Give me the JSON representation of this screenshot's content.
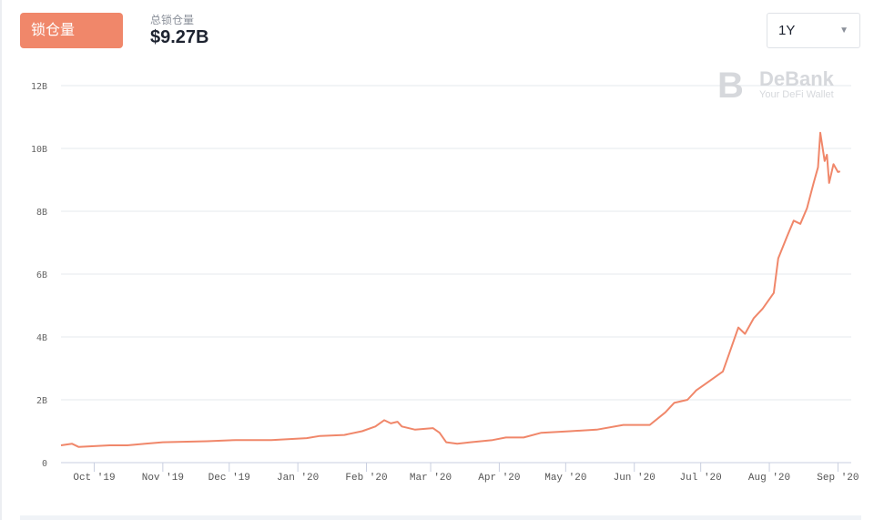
{
  "header": {
    "tab_label": "锁仓量",
    "total_label": "总锁仓量",
    "total_value": "$9.27B",
    "range_value": "1Y",
    "range_icon": "caret-down-icon"
  },
  "watermark": {
    "brand": "DeBank",
    "tagline": "Your DeFi Wallet"
  },
  "colors": {
    "line": "#f0876a",
    "grid": "#e6e8ec",
    "axis": "#c9cfe0"
  },
  "chart_data": {
    "type": "line",
    "title": "",
    "xlabel": "",
    "ylabel": "",
    "x_unit": "days since 2019-10-01",
    "xlim": [
      -15,
      342
    ],
    "ylim": [
      0,
      12
    ],
    "y_ticks": [
      {
        "v": 0,
        "label": "0"
      },
      {
        "v": 2,
        "label": "2B"
      },
      {
        "v": 4,
        "label": "4B"
      },
      {
        "v": 6,
        "label": "6B"
      },
      {
        "v": 8,
        "label": "8B"
      },
      {
        "v": 10,
        "label": "10B"
      },
      {
        "v": 12,
        "label": "12B"
      }
    ],
    "x_ticks": [
      {
        "v": 0,
        "label": "Oct '19"
      },
      {
        "v": 31,
        "label": "Nov '19"
      },
      {
        "v": 61,
        "label": "Dec '19"
      },
      {
        "v": 92,
        "label": "Jan '20"
      },
      {
        "v": 123,
        "label": "Feb '20"
      },
      {
        "v": 152,
        "label": "Mar '20"
      },
      {
        "v": 183,
        "label": "Apr '20"
      },
      {
        "v": 213,
        "label": "May '20"
      },
      {
        "v": 244,
        "label": "Jun '20"
      },
      {
        "v": 274,
        "label": "Jul '20"
      },
      {
        "v": 305,
        "label": "Aug '20"
      },
      {
        "v": 336,
        "label": "Sep '20"
      }
    ],
    "grid": true,
    "series": [
      {
        "name": "锁仓量",
        "unit": "B USD",
        "points": [
          [
            -15,
            0.55
          ],
          [
            -10,
            0.6
          ],
          [
            -7,
            0.5
          ],
          [
            -2,
            0.52
          ],
          [
            7,
            0.55
          ],
          [
            15,
            0.55
          ],
          [
            23,
            0.6
          ],
          [
            31,
            0.65
          ],
          [
            51,
            0.68
          ],
          [
            64,
            0.72
          ],
          [
            80,
            0.72
          ],
          [
            96,
            0.78
          ],
          [
            102,
            0.85
          ],
          [
            113,
            0.88
          ],
          [
            121,
            1.0
          ],
          [
            127,
            1.15
          ],
          [
            131,
            1.35
          ],
          [
            134,
            1.25
          ],
          [
            137,
            1.3
          ],
          [
            139,
            1.15
          ],
          [
            145,
            1.05
          ],
          [
            153,
            1.1
          ],
          [
            156,
            0.95
          ],
          [
            159,
            0.65
          ],
          [
            164,
            0.6
          ],
          [
            170,
            0.65
          ],
          [
            180,
            0.72
          ],
          [
            186,
            0.8
          ],
          [
            194,
            0.8
          ],
          [
            202,
            0.95
          ],
          [
            215,
            1.0
          ],
          [
            227,
            1.05
          ],
          [
            239,
            1.2
          ],
          [
            251,
            1.2
          ],
          [
            258,
            1.6
          ],
          [
            262,
            1.9
          ],
          [
            268,
            2.0
          ],
          [
            272,
            2.3
          ],
          [
            276,
            2.5
          ],
          [
            284,
            2.9
          ],
          [
            287,
            3.5
          ],
          [
            291,
            4.3
          ],
          [
            294,
            4.1
          ],
          [
            298,
            4.6
          ],
          [
            302,
            4.9
          ],
          [
            307,
            5.4
          ],
          [
            309,
            6.5
          ],
          [
            313,
            7.2
          ],
          [
            316,
            7.7
          ],
          [
            319,
            7.6
          ],
          [
            322,
            8.1
          ],
          [
            325,
            8.9
          ],
          [
            327,
            9.4
          ],
          [
            328,
            10.5
          ],
          [
            330,
            9.6
          ],
          [
            331,
            9.8
          ],
          [
            332,
            8.9
          ],
          [
            334,
            9.5
          ],
          [
            336,
            9.25
          ],
          [
            337,
            9.27
          ]
        ]
      }
    ]
  }
}
